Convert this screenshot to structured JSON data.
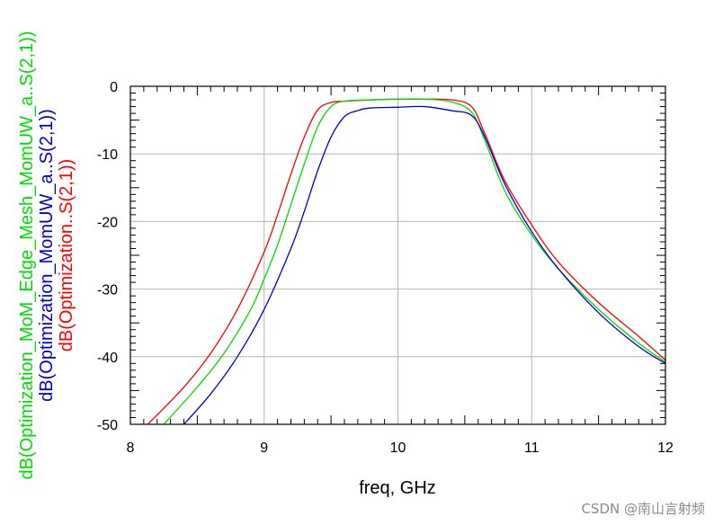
{
  "chart_data": {
    "type": "line",
    "xlabel": "freq, GHz",
    "xlim": [
      8,
      12
    ],
    "ylim": [
      -50,
      0
    ],
    "x_ticks": [
      "8",
      "9",
      "10",
      "11",
      "12"
    ],
    "y_ticks": [
      "0",
      "-10",
      "-20",
      "-30",
      "-40",
      "-50"
    ],
    "grid": true,
    "ylabels": [
      {
        "text": "dB(Optimization_MoM_Edge_Mesh_MomUW_a..S(2,1))",
        "color": "#00dd00"
      },
      {
        "text": "dB(Optimization_MomUW_a..S(2,1))",
        "color": "#0000cc"
      },
      {
        "text": "dB(Optimization..S(2,1))",
        "color": "#ff0000"
      }
    ],
    "series": [
      {
        "color": "#ff0000",
        "x": [
          8.13,
          8.4,
          8.6,
          8.8,
          9.0,
          9.1,
          9.2,
          9.3,
          9.4,
          9.5,
          9.6,
          9.8,
          10.0,
          10.2,
          10.4,
          10.55,
          10.65,
          10.8,
          11.0,
          11.2,
          11.5,
          11.8,
          12.0
        ],
        "y": [
          -50,
          -44.5,
          -39.5,
          -33,
          -24.5,
          -19,
          -13,
          -7.5,
          -3.5,
          -2.4,
          -2.2,
          -2.0,
          -1.9,
          -1.9,
          -2.0,
          -3.0,
          -7,
          -14,
          -20.5,
          -26,
          -32,
          -37,
          -40.5
        ]
      },
      {
        "color": "#00dd00",
        "x": [
          8.25,
          8.5,
          8.7,
          8.9,
          9.0,
          9.1,
          9.2,
          9.3,
          9.4,
          9.5,
          9.6,
          9.8,
          10.0,
          10.2,
          10.4,
          10.55,
          10.65,
          10.8,
          11.0,
          11.2,
          11.5,
          11.8,
          12.0
        ],
        "y": [
          -50,
          -44.5,
          -39.5,
          -33,
          -28.5,
          -23.5,
          -17.5,
          -11.5,
          -6,
          -3,
          -2.2,
          -2.0,
          -1.9,
          -1.9,
          -2.3,
          -3.8,
          -8,
          -15.5,
          -22,
          -27,
          -33,
          -38,
          -40.8
        ]
      },
      {
        "color": "#0000cc",
        "x": [
          8.4,
          8.6,
          8.8,
          9.0,
          9.2,
          9.3,
          9.4,
          9.5,
          9.6,
          9.7,
          9.8,
          10.0,
          10.2,
          10.4,
          10.55,
          10.65,
          10.8,
          11.0,
          11.2,
          11.5,
          11.8,
          12.0
        ],
        "y": [
          -50,
          -45.5,
          -40,
          -33,
          -24,
          -18.5,
          -12.5,
          -7.5,
          -4.5,
          -3.6,
          -3.2,
          -3.1,
          -3.0,
          -3.6,
          -4.3,
          -7.5,
          -14.5,
          -21.5,
          -27,
          -33.5,
          -38.5,
          -41
        ]
      }
    ]
  },
  "watermark": "CSDN @南山言射频"
}
